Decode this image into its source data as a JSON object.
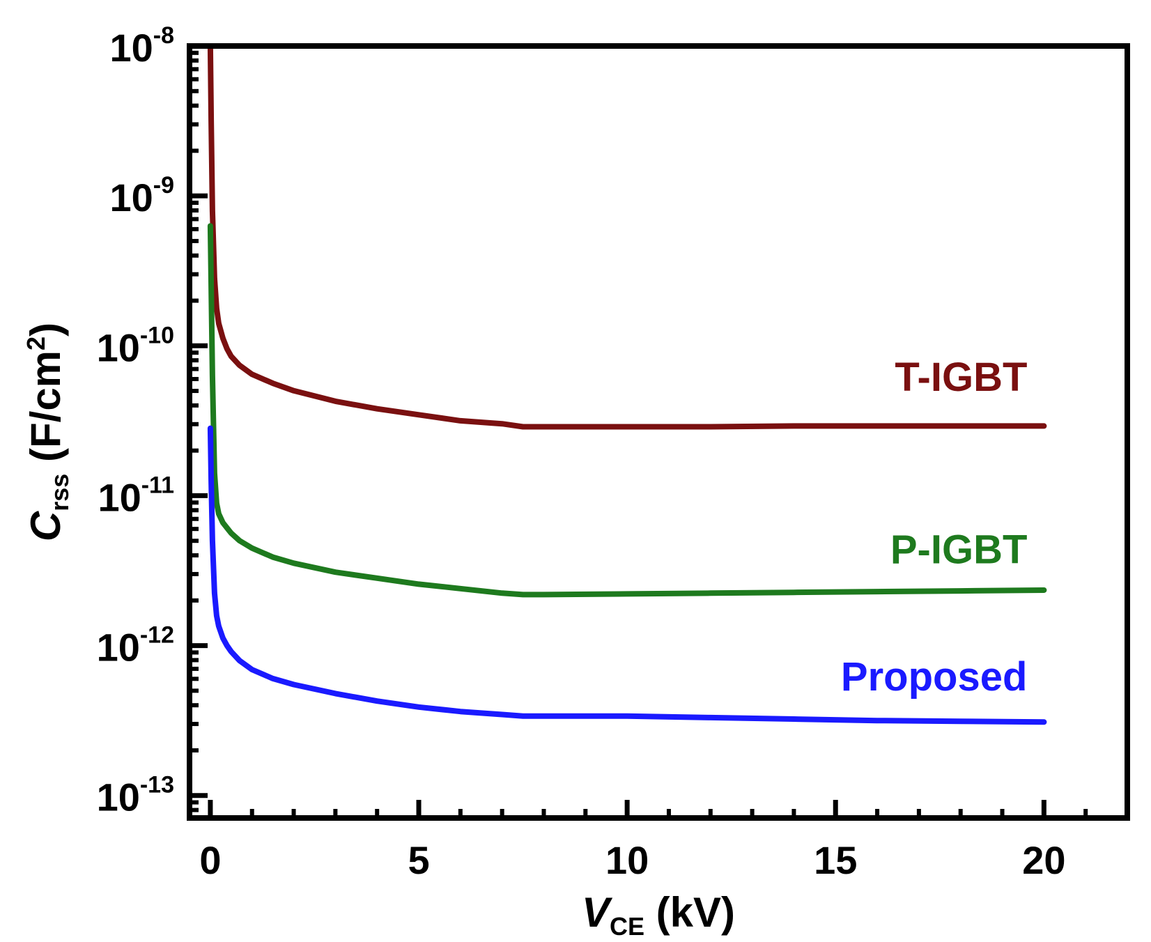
{
  "chart_data": {
    "type": "line",
    "title": "",
    "xlabel": {
      "symbol": "V",
      "subscript": "CE",
      "unit": " (kV)"
    },
    "ylabel": {
      "symbol": "C",
      "subscript": "rss",
      "unit_prefix": " (F/cm",
      "unit_sup": "2",
      "unit_suffix": ")"
    },
    "xlim": [
      -0.5,
      22
    ],
    "ylim_log10": [
      -13.15,
      -8
    ],
    "y_scale": "log",
    "grid": false,
    "x_ticks": [
      {
        "value": 0,
        "label": "0"
      },
      {
        "value": 5,
        "label": "5"
      },
      {
        "value": 10,
        "label": "10"
      },
      {
        "value": 15,
        "label": "15"
      },
      {
        "value": 20,
        "label": "20"
      }
    ],
    "y_ticks": [
      {
        "exp": -8,
        "base": "10",
        "sup": "-8"
      },
      {
        "exp": -9,
        "base": "10",
        "sup": "-9"
      },
      {
        "exp": -10,
        "base": "10",
        "sup": "-10"
      },
      {
        "exp": -11,
        "base": "10",
        "sup": "-11"
      },
      {
        "exp": -12,
        "base": "10",
        "sup": "-12"
      },
      {
        "exp": -13,
        "base": "10",
        "sup": "-13"
      }
    ],
    "series": [
      {
        "name": "T-IGBT",
        "color": "#7a1010",
        "label_anchor": {
          "x": 19.6,
          "y": -10.3
        },
        "x": [
          0,
          0.02,
          0.05,
          0.1,
          0.15,
          0.2,
          0.3,
          0.4,
          0.5,
          0.7,
          1.0,
          1.5,
          2.0,
          3.0,
          4.0,
          5.0,
          6.0,
          7.0,
          7.5,
          8.0,
          10.0,
          12.0,
          14.0,
          16.0,
          18.0,
          20.0
        ],
        "log10y": [
          -8.0,
          -8.5,
          -9.1,
          -9.55,
          -9.75,
          -9.85,
          -9.95,
          -10.02,
          -10.07,
          -10.13,
          -10.19,
          -10.25,
          -10.3,
          -10.37,
          -10.42,
          -10.46,
          -10.5,
          -10.52,
          -10.54,
          -10.54,
          -10.54,
          -10.54,
          -10.535,
          -10.535,
          -10.535,
          -10.535
        ]
      },
      {
        "name": "P-IGBT",
        "color": "#1e7a1e",
        "label_anchor": {
          "x": 19.6,
          "y": -11.45
        },
        "x": [
          0,
          0.02,
          0.05,
          0.1,
          0.15,
          0.2,
          0.3,
          0.5,
          0.7,
          1.0,
          1.5,
          2.0,
          3.0,
          4.0,
          5.0,
          6.0,
          7.0,
          7.5,
          8.0,
          10.0,
          12.0,
          14.0,
          16.0,
          18.0,
          20.0
        ],
        "log10y": [
          -9.2,
          -9.6,
          -10.2,
          -10.85,
          -11.05,
          -11.12,
          -11.18,
          -11.25,
          -11.3,
          -11.35,
          -11.41,
          -11.45,
          -11.51,
          -11.55,
          -11.59,
          -11.62,
          -11.65,
          -11.66,
          -11.66,
          -11.655,
          -11.65,
          -11.645,
          -11.64,
          -11.635,
          -11.63
        ]
      },
      {
        "name": "Proposed",
        "color": "#1a1aff",
        "label_anchor": {
          "x": 19.6,
          "y": -12.3
        },
        "x": [
          0,
          0.02,
          0.05,
          0.1,
          0.15,
          0.2,
          0.3,
          0.4,
          0.5,
          0.7,
          1.0,
          1.5,
          2.0,
          3.0,
          4.0,
          5.0,
          6.0,
          7.0,
          7.5,
          8.0,
          10.0,
          12.0,
          14.0,
          16.0,
          18.0,
          20.0
        ],
        "log10y": [
          -10.55,
          -10.9,
          -11.3,
          -11.65,
          -11.8,
          -11.87,
          -11.95,
          -12.0,
          -12.04,
          -12.1,
          -12.16,
          -12.22,
          -12.26,
          -12.32,
          -12.37,
          -12.41,
          -12.44,
          -12.46,
          -12.47,
          -12.47,
          -12.47,
          -12.48,
          -12.49,
          -12.5,
          -12.505,
          -12.51
        ]
      }
    ]
  }
}
